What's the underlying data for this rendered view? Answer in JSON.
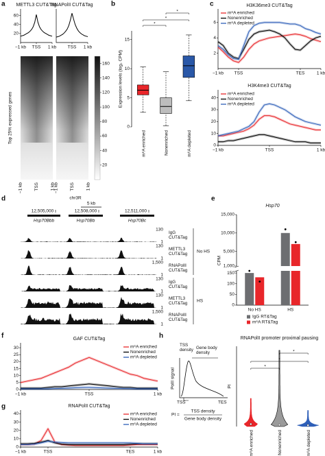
{
  "chart_data": [
    {
      "type": "line",
      "panel": "a",
      "title": "METTL3 CUT&Tag",
      "x": [
        -1,
        -0.9,
        -0.8,
        -0.7,
        -0.6,
        -0.5,
        -0.4,
        -0.3,
        -0.2,
        -0.1,
        0,
        0.1,
        0.2,
        0.3,
        0.4,
        0.5,
        0.6,
        0.7,
        0.8,
        0.9,
        1
      ],
      "xlim": [
        -1,
        1
      ],
      "xticks": [
        {
          "value": -1,
          "label": "−1 kb"
        },
        {
          "value": 0,
          "label": "TSS"
        },
        {
          "value": 1,
          "label": "1 kb"
        }
      ],
      "ylim": [
        0,
        70
      ],
      "yticks": [
        20,
        40,
        60
      ],
      "series": [
        {
          "color": "#000000",
          "values": [
            14,
            15,
            16,
            18,
            20,
            22,
            25,
            29,
            35,
            45,
            62,
            45,
            35,
            29,
            25,
            22,
            20,
            18,
            16,
            15,
            14
          ]
        }
      ]
    },
    {
      "type": "line",
      "title": "RNAPolII CUT&Tag",
      "x": [
        -1,
        -0.9,
        -0.8,
        -0.7,
        -0.6,
        -0.5,
        -0.4,
        -0.3,
        -0.2,
        -0.1,
        0,
        0.1,
        0.2,
        0.3,
        0.4,
        0.5,
        0.6,
        0.7,
        0.8,
        0.9,
        1
      ],
      "xlim": [
        -1,
        1
      ],
      "xticks": [
        {
          "value": 0,
          "label": "TSS"
        },
        {
          "value": 1,
          "label": "1 kb"
        }
      ],
      "ylim": [
        0,
        70
      ],
      "series": [
        {
          "color": "#000000",
          "values": [
            12,
            13,
            14,
            16,
            18,
            21,
            25,
            30,
            38,
            50,
            65,
            52,
            40,
            32,
            26,
            22,
            19,
            17,
            15,
            14,
            13
          ]
        }
      ]
    },
    {
      "type": "heatmap",
      "ylabel": "Top 25% expressed genes",
      "xticks": [
        "−1 kb",
        "TSS",
        "1 kb"
      ],
      "colorbar_lim": [
        0,
        170
      ],
      "colorbar_ticks": [
        20,
        40,
        60,
        80,
        100,
        120,
        140,
        160
      ]
    },
    {
      "type": "box",
      "panel": "b",
      "ylabel": "Expression levels (log₂ CPM)",
      "categories": [
        "m⁶A enriched",
        "Nonenriched",
        "m⁶A depleted"
      ],
      "colors": [
        "#e8262a",
        "#bdbdbd",
        "#2a58a8"
      ],
      "label_colors": [
        "#e8262a",
        "#111111",
        "#2a58a8"
      ],
      "whisker_low": [
        2.5,
        0.2,
        4.5
      ],
      "q1": [
        5.5,
        2.3,
        8.5
      ],
      "median": [
        6.3,
        3.5,
        10.5
      ],
      "q3": [
        7.2,
        5.0,
        12.2
      ],
      "whisker_high": [
        10.3,
        9.5,
        15.8
      ],
      "ylim": [
        0,
        16.5
      ],
      "yticks": [
        0,
        5,
        10,
        15
      ],
      "significance": [
        "*",
        "*",
        "*"
      ]
    },
    {
      "type": "line",
      "panel": "c",
      "title": "H3K36me3 CUT&Tag",
      "legend": "upper left",
      "x": [
        0,
        5,
        10,
        15,
        20,
        25,
        30,
        35,
        40,
        45,
        50,
        55,
        60,
        65,
        70,
        75,
        80,
        85,
        90,
        95,
        100
      ],
      "xlim": [
        0,
        100
      ],
      "xticks": [
        {
          "value": 0,
          "label": "−1 kb"
        },
        {
          "value": 20,
          "label": "TSS"
        },
        {
          "value": 80,
          "label": "TES"
        },
        {
          "value": 100,
          "label": "1 kb"
        }
      ],
      "ylim": [
        0,
        7.5
      ],
      "yticks": [
        2,
        4,
        6
      ],
      "series": [
        {
          "name": "m⁶A enriched",
          "color": "#e8262a",
          "values": [
            2.8,
            2.2,
            1.5,
            1.0,
            0.8,
            1.5,
            2.5,
            3.2,
            3.6,
            3.8,
            4.0,
            4.1,
            4.2,
            4.3,
            4.4,
            4.5,
            4.4,
            4.2,
            3.9,
            3.7,
            3.5
          ]
        },
        {
          "name": "Nonenriched",
          "color": "#000000",
          "values": [
            3.5,
            3.0,
            2.0,
            1.5,
            1.3,
            2.5,
            3.8,
            4.5,
            4.8,
            4.9,
            5.0,
            4.8,
            4.5,
            4.0,
            3.2,
            2.5,
            2.4,
            3.0,
            3.6,
            4.0,
            4.2
          ]
        },
        {
          "name": "m⁶A depleted",
          "color": "#2e5fb8",
          "values": [
            3.0,
            2.5,
            1.8,
            1.3,
            1.2,
            3.0,
            4.8,
            5.6,
            5.9,
            6.0,
            6.0,
            6.0,
            6.0,
            5.9,
            5.8,
            5.8,
            5.6,
            5.2,
            5.0,
            4.7,
            4.5
          ]
        }
      ]
    },
    {
      "type": "line",
      "title": "H3K4me3 CUT&Tag",
      "legend": "upper left",
      "x": [
        -1,
        -0.9,
        -0.8,
        -0.7,
        -0.6,
        -0.5,
        -0.4,
        -0.3,
        -0.2,
        -0.1,
        0,
        0.1,
        0.2,
        0.3,
        0.4,
        0.5,
        0.6,
        0.7,
        0.8,
        0.9,
        1
      ],
      "xlim": [
        -1,
        1
      ],
      "xticks": [
        {
          "value": -1,
          "label": "−1 kb"
        },
        {
          "value": 0,
          "label": "TSS"
        },
        {
          "value": 1,
          "label": "1 kb"
        }
      ],
      "ylim": [
        0,
        45
      ],
      "yticks": [
        0,
        10,
        20,
        30,
        40
      ],
      "series": [
        {
          "name": "m⁶A enriched",
          "color": "#e8262a",
          "values": [
            8,
            8,
            9,
            10,
            11,
            12,
            14,
            17,
            22,
            25,
            25,
            24,
            22,
            20,
            18,
            17,
            16,
            15,
            14,
            13,
            13
          ]
        },
        {
          "name": "Nonenriched",
          "color": "#000000",
          "values": [
            3,
            3,
            4,
            4,
            5,
            6,
            7,
            8,
            9,
            9,
            8,
            7,
            6,
            5,
            4,
            3,
            3,
            3,
            2,
            2,
            2
          ]
        },
        {
          "name": "m⁶A depleted",
          "color": "#2e5fb8",
          "values": [
            8,
            9,
            10,
            11,
            12,
            14,
            16,
            20,
            28,
            34,
            35,
            34,
            32,
            30,
            27,
            24,
            22,
            20,
            19,
            18,
            17
          ]
        }
      ]
    },
    {
      "type": "tracks",
      "panel": "d",
      "chrom": "chr3R",
      "scalebar": "5 kb",
      "coordinates": [
        {
          "value": 12505000,
          "label": "12,505,000"
        },
        {
          "value": 12508000,
          "label": "12,508,000"
        },
        {
          "value": 12511000,
          "label": "12,511,000"
        }
      ],
      "genes": [
        "Hsp70Bbb",
        "Hsp70Bb",
        "Hsp70Bc"
      ],
      "groups": [
        {
          "name": "No HS",
          "tracks": [
            {
              "name": "IgG CUT&Tag",
              "max": 130,
              "min": 1
            },
            {
              "name": "METTL3 CUT&Tag",
              "max": 130,
              "min": 1
            },
            {
              "name": "RNAPolII CUT&Tag",
              "max": {
                "value": 1500,
                "label": "1,500"
              },
              "min": 1
            }
          ]
        },
        {
          "name": "HS",
          "tracks": [
            {
              "name": "IgG CUT&Tag",
              "max": 130,
              "min": 1
            },
            {
              "name": "METTL3 CUT&Tag",
              "max": 130,
              "min": 1
            },
            {
              "name": "RNAPolII CUT&Tag",
              "max": {
                "value": 1500,
                "label": "1,500"
              },
              "min": 1
            }
          ]
        }
      ]
    },
    {
      "type": "bar",
      "panel": "e",
      "title": "Hsp70",
      "ylabel": "CPM",
      "legend": "lower center",
      "categories": [
        "No HS",
        "HS"
      ],
      "series": [
        {
          "name": "IgG RT&Tag",
          "color": "#6d6e71",
          "values": [
            150,
            10000
          ],
          "points": [
            160,
            11000
          ]
        },
        {
          "name": "m⁶A RT&Tag",
          "color": "#e8262a",
          "values": [
            130,
            7000
          ],
          "points": [
            110,
            7500
          ]
        }
      ],
      "ylim_lower": [
        0,
        160
      ],
      "yticks_lower": [
        0,
        50,
        100,
        150
      ],
      "ylim_upper": [
        1000,
        15000
      ],
      "yticks_upper": [
        {
          "value": 1000,
          "label": "1,000"
        },
        {
          "value": 5000,
          "label": "5,000"
        },
        {
          "value": 10000,
          "label": "10,000"
        },
        {
          "value": 15000,
          "label": "15,000"
        }
      ]
    },
    {
      "type": "line",
      "panel": "f",
      "title": "GAF CUT&Tag",
      "legend": "upper right",
      "x": [
        -1,
        -0.9,
        -0.8,
        -0.7,
        -0.6,
        -0.5,
        -0.4,
        -0.3,
        -0.2,
        -0.1,
        0,
        0.1,
        0.2,
        0.3,
        0.4,
        0.5,
        0.6,
        0.7,
        0.8,
        0.9,
        1
      ],
      "xlim": [
        -1,
        1
      ],
      "xticks": [
        {
          "value": -1,
          "label": "−1 kb"
        },
        {
          "value": 0,
          "label": "TSS"
        },
        {
          "value": 1,
          "label": "1 kb"
        }
      ],
      "ylim": [
        0,
        32
      ],
      "yticks": [
        0,
        5,
        10,
        15,
        20,
        25,
        30
      ],
      "series": [
        {
          "name": "m⁶A enriched",
          "color": "#e8262a",
          "values": [
            5,
            6,
            7,
            8,
            10,
            12,
            14,
            16,
            19,
            21,
            23,
            21,
            19,
            17,
            15,
            13,
            11,
            10,
            8,
            7,
            6
          ]
        },
        {
          "name": "Nonenriched",
          "color": "#000000",
          "values": [
            1,
            1,
            1,
            1,
            1.5,
            2,
            2,
            2.5,
            3,
            3.5,
            4,
            3.5,
            3,
            2.5,
            2,
            1.5,
            1.5,
            1,
            1,
            1,
            1
          ]
        },
        {
          "name": "m⁶A depleted",
          "color": "#2e5fb8",
          "values": [
            0.5,
            0.5,
            0.5,
            0.5,
            0.5,
            0.7,
            0.8,
            1,
            1.2,
            1.4,
            1.5,
            1.3,
            1.1,
            0.9,
            0.8,
            0.7,
            0.6,
            0.5,
            0.5,
            0.5,
            0.5
          ]
        }
      ]
    },
    {
      "type": "line",
      "panel": "g",
      "title": "RNAPolII CUT&Tag",
      "legend": "upper right",
      "x": [
        0,
        5,
        10,
        15,
        20,
        25,
        30,
        35,
        40,
        45,
        50,
        55,
        60,
        65,
        70,
        75,
        80,
        85,
        90,
        95,
        100
      ],
      "xlim": [
        0,
        100
      ],
      "xticks": [
        {
          "value": 0,
          "label": "−1 kb"
        },
        {
          "value": 20,
          "label": "TSS"
        },
        {
          "value": 80,
          "label": "TES"
        },
        {
          "value": 100,
          "label": "1 kb"
        }
      ],
      "ylim": [
        0,
        42
      ],
      "yticks": [
        0,
        10,
        20,
        30,
        40
      ],
      "series": [
        {
          "name": "m⁶A enriched",
          "color": "#e8262a",
          "values": [
            3,
            3,
            3.5,
            8,
            22,
            6,
            3,
            2.5,
            2,
            2,
            2,
            2,
            2,
            2,
            2,
            2,
            2.5,
            3,
            3,
            3,
            3
          ]
        },
        {
          "name": "Nonenriched",
          "color": "#000000",
          "values": [
            4,
            4,
            4.5,
            6,
            8,
            5,
            3.5,
            3,
            3,
            3,
            3,
            3,
            3,
            3,
            3,
            3,
            3.5,
            4,
            4,
            4,
            4
          ]
        },
        {
          "name": "m⁶A depleted",
          "color": "#2e5fb8",
          "values": [
            3,
            3,
            3.5,
            5,
            7,
            6,
            5.5,
            5,
            5,
            5,
            5,
            5,
            5,
            5,
            5,
            5,
            5,
            4.5,
            4,
            4,
            4
          ]
        }
      ]
    },
    {
      "type": "diagram",
      "panel": "h",
      "ylabel": "PolII signal",
      "tss_density": "TSS density",
      "gene_body_density": "Gene body density",
      "tss": "TSS",
      "tes": "TES",
      "formula": "PI =",
      "numerator": "TSS density",
      "denominator": "Gene body density"
    },
    {
      "type": "violin",
      "title": "RNAPolII promoter proximal pausing",
      "ylabel": "PI",
      "categories": [
        "m⁶A enriched",
        "Nonenriched",
        "m⁶A depleted"
      ],
      "colors": [
        "#e8262a",
        "#9a9a9a",
        "#2e5fb8"
      ],
      "label_colors": [
        "#e8262a",
        "#111111",
        "#2e5fb8"
      ],
      "median": [
        3,
        2,
        1.5
      ],
      "max": [
        35,
        95,
        20
      ],
      "ylim": [
        0,
        100
      ],
      "significance": [
        "*",
        "*",
        "*"
      ]
    }
  ]
}
